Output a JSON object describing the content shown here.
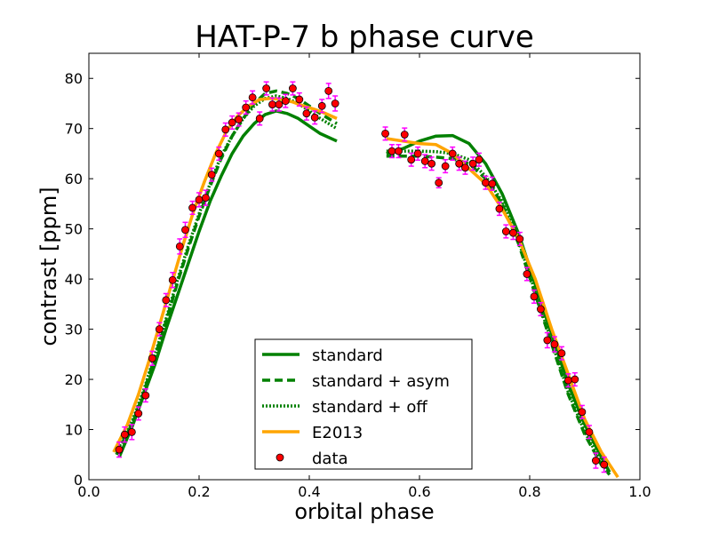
{
  "chart_data": {
    "type": "line",
    "title": "HAT-P-7 b phase curve",
    "xlabel": "orbital phase",
    "ylabel": "contrast [ppm]",
    "xlim": [
      0.0,
      1.0
    ],
    "ylim": [
      0,
      85
    ],
    "xticks": [
      0.0,
      0.2,
      0.4,
      0.6,
      0.8,
      1.0
    ],
    "xtick_labels": [
      "0.0",
      "0.2",
      "0.4",
      "0.6",
      "0.8",
      "1.0"
    ],
    "yticks": [
      0,
      10,
      20,
      30,
      40,
      50,
      60,
      70,
      80
    ],
    "ytick_labels": [
      "0",
      "10",
      "20",
      "30",
      "40",
      "50",
      "60",
      "70",
      "80"
    ],
    "legend_position": "bottom-center",
    "colors": {
      "standard": "#008000",
      "e2013": "#ffa500",
      "data_fill": "#ff0000",
      "data_edge": "#000000",
      "errorbar": "#ff00ff"
    },
    "series": [
      {
        "name": "standard",
        "style": "solid",
        "color": "#008000",
        "segments": [
          {
            "x": [
              0.055,
              0.08,
              0.1,
              0.12,
              0.14,
              0.16,
              0.18,
              0.2,
              0.22,
              0.24,
              0.26,
              0.28,
              0.3,
              0.32,
              0.34,
              0.36,
              0.38,
              0.4,
              0.42,
              0.45
            ],
            "y": [
              4.5,
              11,
              17,
              23,
              30,
              36.5,
              43,
              49.5,
              55.5,
              60.5,
              65,
              68.5,
              71,
              72.8,
              73.5,
              73,
              72,
              70.5,
              69,
              67.5
            ]
          },
          {
            "x": [
              0.54,
              0.57,
              0.6,
              0.63,
              0.66,
              0.69,
              0.72,
              0.75,
              0.78,
              0.81,
              0.84,
              0.87,
              0.9,
              0.93,
              0.945
            ],
            "y": [
              65,
              66,
              67.5,
              68.5,
              68.6,
              67,
              63,
              57,
              49,
              39,
              29,
              19,
              11,
              4.5,
              1.5
            ]
          }
        ]
      },
      {
        "name": "standard + asym",
        "style": "dashed",
        "color": "#008000",
        "segments": [
          {
            "x": [
              0.05,
              0.08,
              0.1,
              0.12,
              0.14,
              0.16,
              0.18,
              0.2,
              0.22,
              0.24,
              0.26,
              0.28,
              0.3,
              0.32,
              0.34,
              0.36,
              0.38,
              0.4,
              0.42,
              0.45
            ],
            "y": [
              5,
              11.5,
              17.5,
              24.5,
              31.5,
              39,
              46,
              52.5,
              58.5,
              64,
              68.5,
              72,
              75,
              77,
              77.5,
              77,
              76,
              74.5,
              73,
              71
            ]
          },
          {
            "x": [
              0.54,
              0.57,
              0.6,
              0.63,
              0.66,
              0.69,
              0.72,
              0.75,
              0.78,
              0.81,
              0.84,
              0.87,
              0.9,
              0.93,
              0.945
            ],
            "y": [
              64.5,
              64.5,
              64.5,
              64.3,
              64,
              63,
              60,
              55,
              47,
              37,
              27,
              17,
              9,
              3,
              1
            ]
          }
        ]
      },
      {
        "name": "standard + off",
        "style": "dotted",
        "color": "#008000",
        "segments": [
          {
            "x": [
              0.05,
              0.08,
              0.1,
              0.12,
              0.14,
              0.16,
              0.18,
              0.2,
              0.22,
              0.24,
              0.26,
              0.28,
              0.3,
              0.32,
              0.34,
              0.36,
              0.38,
              0.4,
              0.42,
              0.45
            ],
            "y": [
              5.5,
              12,
              18,
              25,
              32,
              39.5,
              46.5,
              53,
              59,
              64.5,
              68.5,
              72,
              74.5,
              76,
              76.5,
              76,
              75,
              73.5,
              72,
              70
            ]
          },
          {
            "x": [
              0.54,
              0.57,
              0.6,
              0.63,
              0.66,
              0.69,
              0.72,
              0.75,
              0.78,
              0.81,
              0.84,
              0.87,
              0.9,
              0.93,
              0.945
            ],
            "y": [
              65.5,
              65.5,
              65.5,
              65.4,
              65,
              63.8,
              60.5,
              55.5,
              47.5,
              37.5,
              27.5,
              17.5,
              9.5,
              3.5,
              1.5
            ]
          }
        ]
      },
      {
        "name": "E2013",
        "style": "solid",
        "color": "#ffa500",
        "segments": [
          {
            "x": [
              0.045,
              0.07,
              0.09,
              0.11,
              0.13,
              0.15,
              0.17,
              0.19,
              0.21,
              0.23,
              0.25,
              0.27,
              0.29,
              0.31,
              0.33,
              0.35,
              0.37,
              0.39,
              0.41,
              0.43,
              0.45
            ],
            "y": [
              5.5,
              11,
              17,
              24,
              31.5,
              39,
              46.5,
              53.5,
              59.5,
              65,
              69.5,
              72.5,
              74.5,
              75.8,
              76,
              75.8,
              75.3,
              74.5,
              73.8,
              73,
              72
            ]
          },
          {
            "x": [
              0.54,
              0.57,
              0.6,
              0.63,
              0.66,
              0.69,
              0.72,
              0.75,
              0.78,
              0.81,
              0.84,
              0.87,
              0.9,
              0.93,
              0.96
            ],
            "y": [
              68,
              67.5,
              67,
              66.8,
              65,
              62,
              59,
              54,
              48,
              40,
              30,
              21,
              12,
              5.5,
              0.5
            ]
          }
        ]
      }
    ],
    "data_points": [
      {
        "x": 0.055,
        "y": 6,
        "err": 1.5
      },
      {
        "x": 0.065,
        "y": 9,
        "err": 1.5
      },
      {
        "x": 0.078,
        "y": 9.5,
        "err": 1.5
      },
      {
        "x": 0.09,
        "y": 13.2,
        "err": 1.3
      },
      {
        "x": 0.103,
        "y": 16.8,
        "err": 1.3
      },
      {
        "x": 0.115,
        "y": 24.2,
        "err": 1.4
      },
      {
        "x": 0.128,
        "y": 30,
        "err": 1.3
      },
      {
        "x": 0.14,
        "y": 35.8,
        "err": 1.3
      },
      {
        "x": 0.152,
        "y": 39.8,
        "err": 1.5
      },
      {
        "x": 0.165,
        "y": 46.5,
        "err": 1.5
      },
      {
        "x": 0.175,
        "y": 49.8,
        "err": 1.5
      },
      {
        "x": 0.188,
        "y": 54.2,
        "err": 1.3
      },
      {
        "x": 0.2,
        "y": 55.8,
        "err": 1.4
      },
      {
        "x": 0.212,
        "y": 56.2,
        "err": 1.5
      },
      {
        "x": 0.223,
        "y": 60.8,
        "err": 1.3
      },
      {
        "x": 0.236,
        "y": 65,
        "err": 1.3
      },
      {
        "x": 0.248,
        "y": 69.8,
        "err": 1.3
      },
      {
        "x": 0.26,
        "y": 71.2,
        "err": 1.3
      },
      {
        "x": 0.272,
        "y": 71.8,
        "err": 1.3
      },
      {
        "x": 0.285,
        "y": 74.2,
        "err": 1.3
      },
      {
        "x": 0.297,
        "y": 76.2,
        "err": 1.3
      },
      {
        "x": 0.31,
        "y": 72,
        "err": 1.3
      },
      {
        "x": 0.322,
        "y": 78,
        "err": 1.3
      },
      {
        "x": 0.333,
        "y": 74.8,
        "err": 1.3
      },
      {
        "x": 0.345,
        "y": 74.8,
        "err": 1.3
      },
      {
        "x": 0.357,
        "y": 75.5,
        "err": 1.3
      },
      {
        "x": 0.37,
        "y": 78,
        "err": 1.3
      },
      {
        "x": 0.382,
        "y": 75.8,
        "err": 1.3
      },
      {
        "x": 0.395,
        "y": 73,
        "err": 1.3
      },
      {
        "x": 0.41,
        "y": 72.2,
        "err": 1.3
      },
      {
        "x": 0.423,
        "y": 74.5,
        "err": 1.3
      },
      {
        "x": 0.435,
        "y": 77.5,
        "err": 1.5
      },
      {
        "x": 0.447,
        "y": 75,
        "err": 1.5
      },
      {
        "x": 0.538,
        "y": 69,
        "err": 1.3
      },
      {
        "x": 0.55,
        "y": 65.5,
        "err": 1.3
      },
      {
        "x": 0.562,
        "y": 65.5,
        "err": 1.3
      },
      {
        "x": 0.573,
        "y": 68.8,
        "err": 1.3
      },
      {
        "x": 0.585,
        "y": 63.8,
        "err": 1.3
      },
      {
        "x": 0.597,
        "y": 65,
        "err": 1.3
      },
      {
        "x": 0.61,
        "y": 63.5,
        "err": 1.3
      },
      {
        "x": 0.622,
        "y": 63,
        "err": 1.3
      },
      {
        "x": 0.635,
        "y": 59.2,
        "err": 1.0
      },
      {
        "x": 0.647,
        "y": 62.5,
        "err": 1.3
      },
      {
        "x": 0.66,
        "y": 65,
        "err": 1.3
      },
      {
        "x": 0.672,
        "y": 63,
        "err": 1.3
      },
      {
        "x": 0.683,
        "y": 62.2,
        "err": 1.3
      },
      {
        "x": 0.697,
        "y": 63,
        "err": 1.3
      },
      {
        "x": 0.708,
        "y": 63.8,
        "err": 1.3
      },
      {
        "x": 0.72,
        "y": 59.2,
        "err": 1.3
      },
      {
        "x": 0.732,
        "y": 59,
        "err": 1.3
      },
      {
        "x": 0.745,
        "y": 54,
        "err": 1.3
      },
      {
        "x": 0.757,
        "y": 49.5,
        "err": 1.3
      },
      {
        "x": 0.77,
        "y": 49.2,
        "err": 1.3
      },
      {
        "x": 0.782,
        "y": 48,
        "err": 1.3
      },
      {
        "x": 0.795,
        "y": 41,
        "err": 1.3
      },
      {
        "x": 0.808,
        "y": 36.5,
        "err": 1.3
      },
      {
        "x": 0.82,
        "y": 34,
        "err": 1.3
      },
      {
        "x": 0.832,
        "y": 27.8,
        "err": 1.5
      },
      {
        "x": 0.845,
        "y": 27,
        "err": 1.5
      },
      {
        "x": 0.858,
        "y": 25.2,
        "err": 1.3
      },
      {
        "x": 0.87,
        "y": 19.8,
        "err": 1.3
      },
      {
        "x": 0.882,
        "y": 20,
        "err": 1.3
      },
      {
        "x": 0.895,
        "y": 13.5,
        "err": 1.3
      },
      {
        "x": 0.908,
        "y": 9.5,
        "err": 1.3
      },
      {
        "x": 0.92,
        "y": 3.8,
        "err": 1.5
      },
      {
        "x": 0.935,
        "y": 3,
        "err": 1.5
      }
    ],
    "legend": [
      {
        "label": "standard",
        "style": "solid",
        "color": "#008000"
      },
      {
        "label": "standard + asym",
        "style": "dashed",
        "color": "#008000"
      },
      {
        "label": "standard + off",
        "style": "dotted",
        "color": "#008000"
      },
      {
        "label": "E2013",
        "style": "solid",
        "color": "#ffa500"
      },
      {
        "label": "data",
        "style": "marker",
        "color": "#ff0000"
      }
    ]
  }
}
